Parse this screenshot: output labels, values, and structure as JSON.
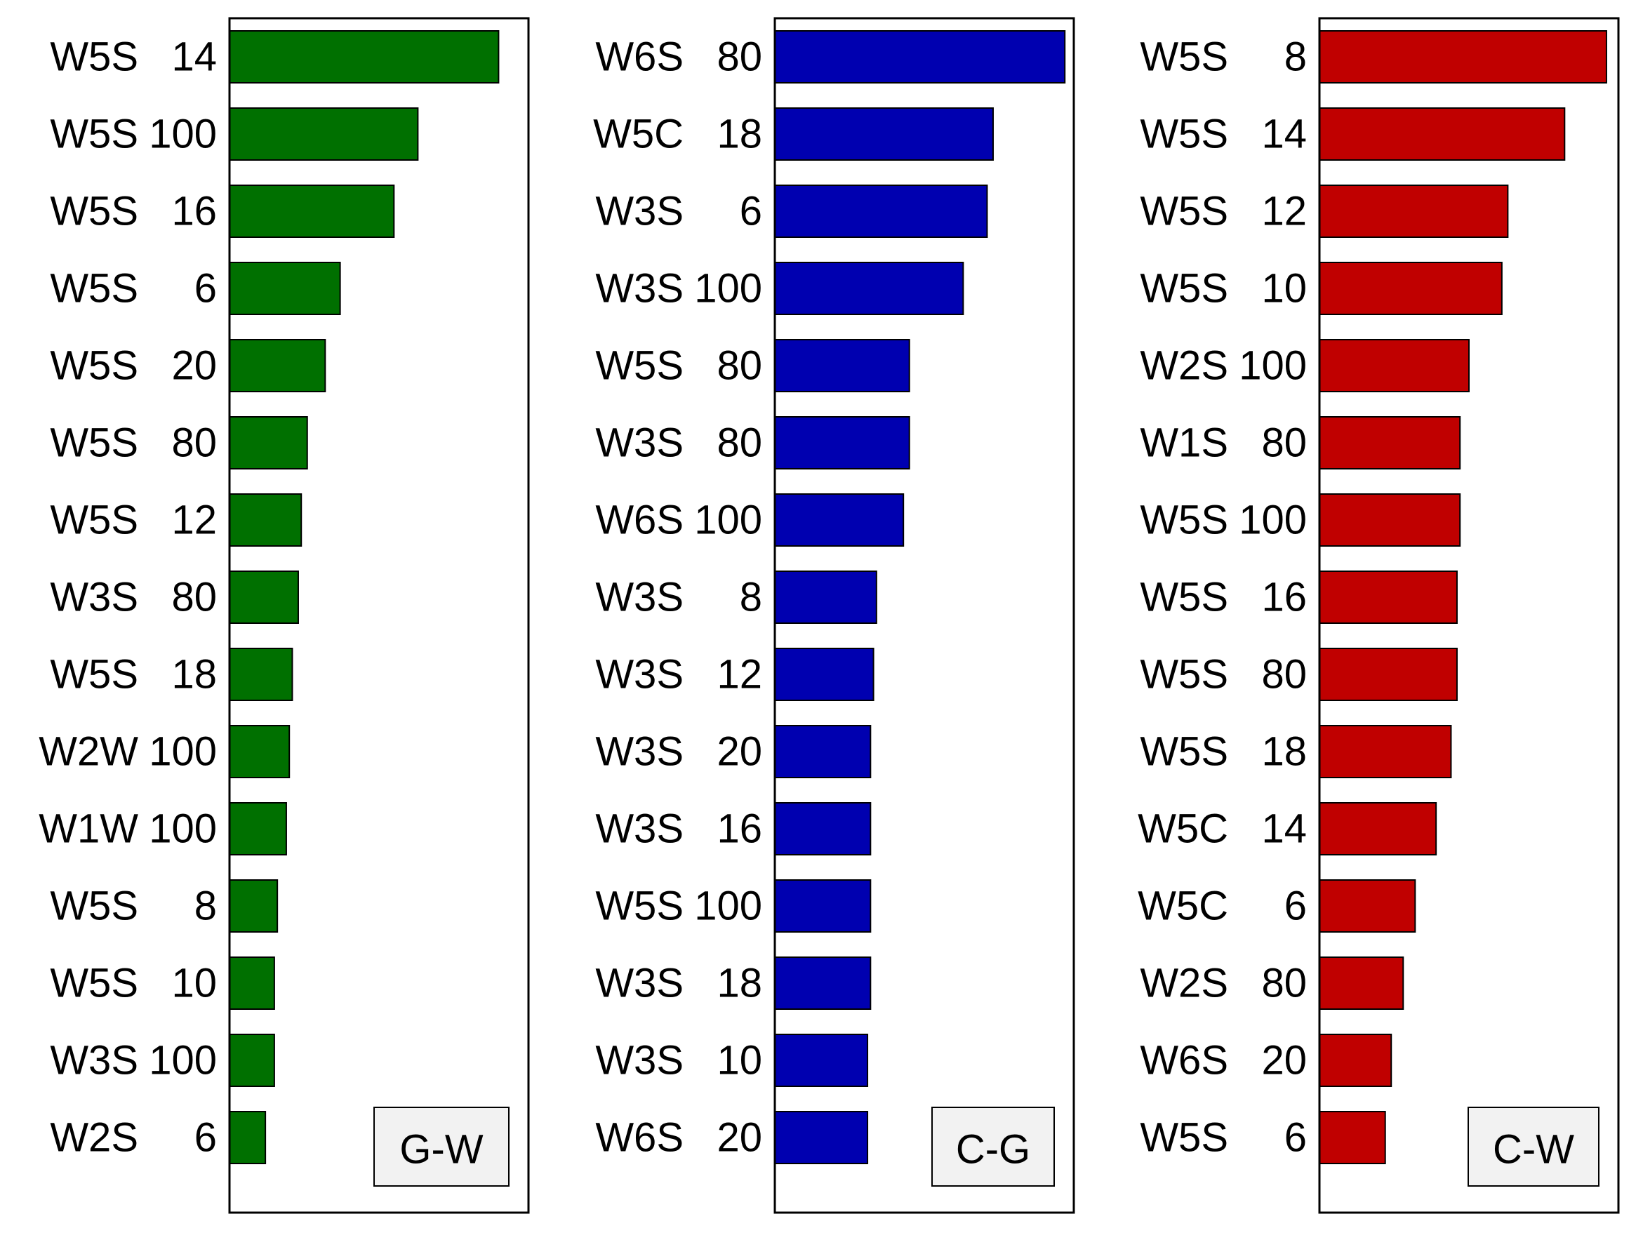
{
  "chart_data": [
    {
      "type": "bar",
      "orientation": "horizontal",
      "panel_label": "G-W",
      "color": "#007000",
      "categories": [
        "W5S 14",
        "W5S 100",
        "W5S 16",
        "W5S 6",
        "W5S 20",
        "W5S 80",
        "W5S 12",
        "W3S 80",
        "W5S 18",
        "W2W 100",
        "W1W 100",
        "W5S 8",
        "W5S 10",
        "W3S 100",
        "W2S 6"
      ],
      "values": [
        0.9,
        0.63,
        0.55,
        0.37,
        0.32,
        0.26,
        0.24,
        0.23,
        0.21,
        0.2,
        0.19,
        0.16,
        0.15,
        0.15,
        0.12
      ],
      "xlim": [
        0,
        1
      ],
      "grid": false,
      "legend": "bottom-right"
    },
    {
      "type": "bar",
      "orientation": "horizontal",
      "panel_label": "C-G",
      "color": "#0000B0",
      "categories": [
        "W6S 80",
        "W5C 18",
        "W3S 6",
        "W3S 100",
        "W5S 80",
        "W3S 80",
        "W6S 100",
        "W3S 8",
        "W3S 12",
        "W3S 20",
        "W3S 16",
        "W5S 100",
        "W3S 18",
        "W3S 10",
        "W6S 20"
      ],
      "values": [
        0.97,
        0.73,
        0.71,
        0.63,
        0.45,
        0.45,
        0.43,
        0.34,
        0.33,
        0.32,
        0.32,
        0.32,
        0.32,
        0.31,
        0.31
      ],
      "xlim": [
        0,
        1
      ],
      "grid": false,
      "legend": "bottom-right"
    },
    {
      "type": "bar",
      "orientation": "horizontal",
      "panel_label": "C-W",
      "color": "#C00000",
      "categories": [
        "W5S 8",
        "W5S 14",
        "W5S 12",
        "W5S 10",
        "W2S 100",
        "W1S 80",
        "W5S 100",
        "W5S 16",
        "W5S 80",
        "W5S 18",
        "W5C 14",
        "W5C 6",
        "W2S 80",
        "W6S 20",
        "W5S 6"
      ],
      "values": [
        0.96,
        0.82,
        0.63,
        0.61,
        0.5,
        0.47,
        0.47,
        0.46,
        0.46,
        0.44,
        0.39,
        0.32,
        0.28,
        0.24,
        0.22
      ],
      "xlim": [
        0,
        1
      ],
      "grid": false,
      "legend": "bottom-right"
    }
  ]
}
